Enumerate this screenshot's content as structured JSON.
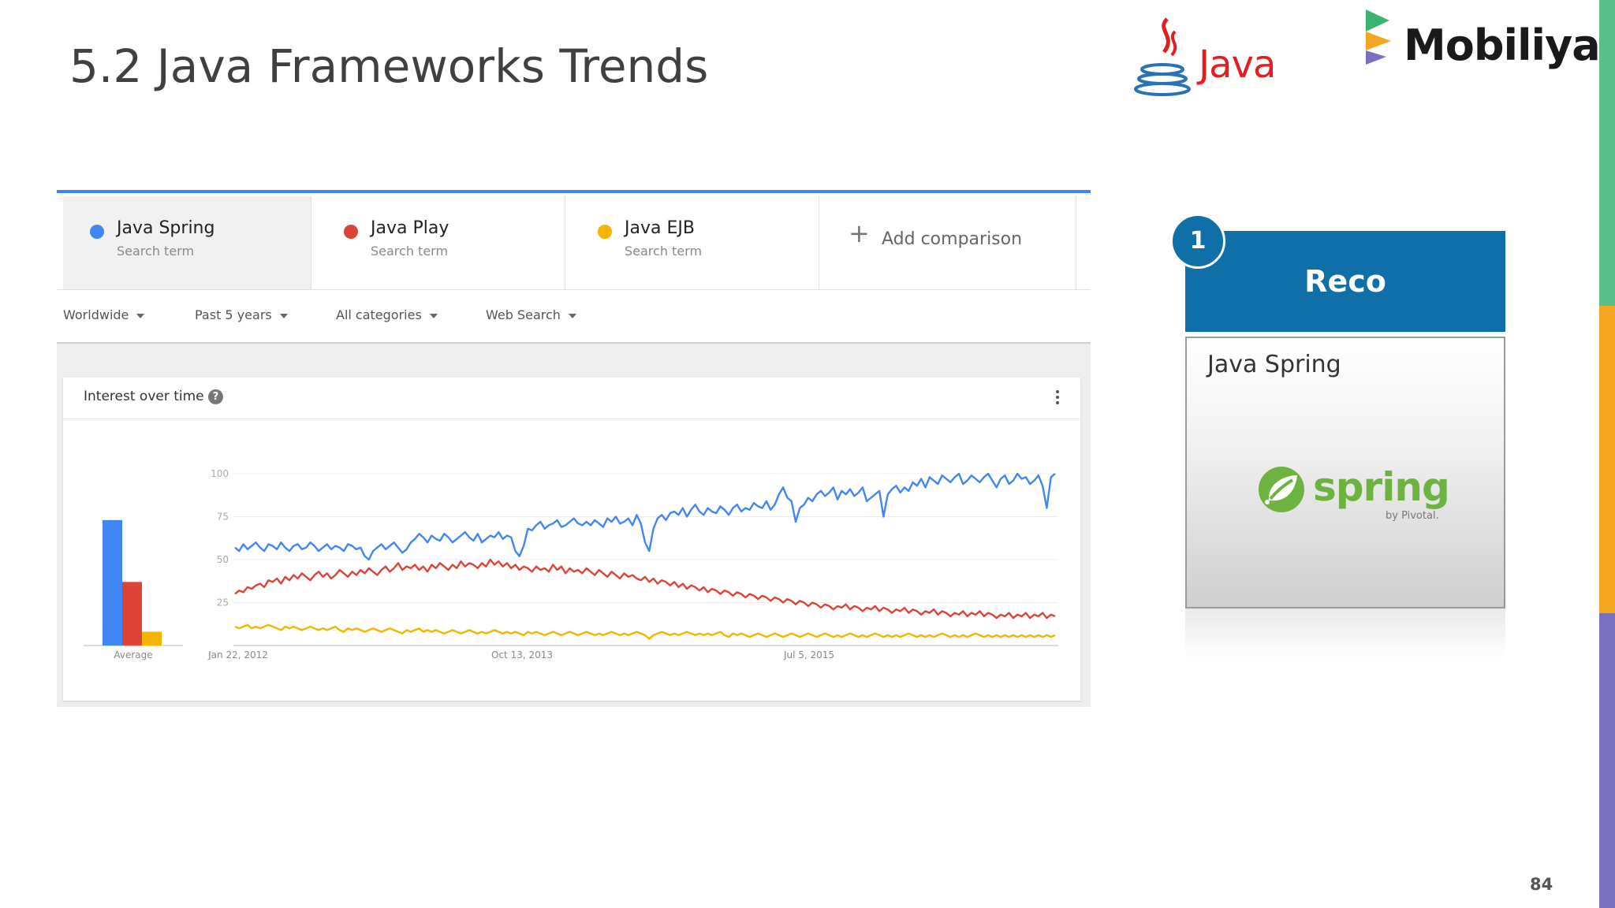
{
  "slide": {
    "title": "5.2 Java Frameworks Trends",
    "page_number": "84"
  },
  "logos": {
    "java": "Java",
    "mobiliya": "Mobiliya"
  },
  "side_strip_colors": [
    "#5bbf8a",
    "#f5a623",
    "#7b6fbf"
  ],
  "trends": {
    "terms": [
      {
        "name": "Java Spring",
        "sub": "Search term",
        "color": "#4285f4"
      },
      {
        "name": "Java Play",
        "sub": "Search term",
        "color": "#db4437"
      },
      {
        "name": "Java EJB",
        "sub": "Search term",
        "color": "#f4b400"
      }
    ],
    "add_comparison": "Add comparison",
    "filters": [
      "Worldwide",
      "Past 5 years",
      "All categories",
      "Web Search"
    ],
    "card_title": "Interest over time",
    "help_icon": "help-icon",
    "menu_icon": "more-vert-icon"
  },
  "chart_data": {
    "type": "line",
    "title": "",
    "x_tick_labels": [
      "Jan 22, 2012",
      "Oct 13, 2013",
      "Jul 5, 2015"
    ],
    "ylim": [
      0,
      100
    ],
    "y_ticks": [
      25,
      50,
      75,
      100
    ],
    "grid": true,
    "average_label": "Average",
    "average_bars": [
      {
        "name": "Java Spring",
        "value": 73
      },
      {
        "name": "Java Play",
        "value": 37
      },
      {
        "name": "Java EJB",
        "value": 8
      }
    ],
    "x_range": [
      "2012-01-22",
      "2017-01-15"
    ],
    "series": [
      {
        "name": "Java Spring",
        "values": [
          57,
          55,
          59,
          56,
          58,
          60,
          57,
          55,
          59,
          58,
          56,
          60,
          57,
          55,
          58,
          59,
          56,
          57,
          60,
          58,
          55,
          57,
          59,
          56,
          58,
          57,
          55,
          59,
          58,
          56,
          57,
          52,
          50,
          55,
          57,
          59,
          56,
          58,
          60,
          57,
          54,
          56,
          60,
          62,
          65,
          63,
          60,
          64,
          62,
          61,
          65,
          63,
          60,
          62,
          64,
          66,
          63,
          61,
          65,
          60,
          62,
          64,
          63,
          66,
          62,
          64,
          63,
          55,
          52,
          58,
          68,
          67,
          70,
          72,
          68,
          70,
          71,
          73,
          69,
          70,
          72,
          74,
          71,
          70,
          72,
          70,
          73,
          71,
          69,
          74,
          72,
          75,
          71,
          72,
          74,
          70,
          76,
          71,
          60,
          55,
          68,
          74,
          76,
          73,
          77,
          78,
          76,
          80,
          75,
          79,
          82,
          78,
          76,
          80,
          78,
          77,
          81,
          79,
          76,
          80,
          82,
          78,
          80,
          79,
          83,
          81,
          80,
          84,
          79,
          82,
          88,
          92,
          86,
          84,
          72,
          80,
          82,
          86,
          84,
          88,
          90,
          87,
          89,
          92,
          85,
          90,
          88,
          91,
          87,
          89,
          92,
          84,
          86,
          88,
          90,
          75,
          88,
          91,
          93,
          89,
          92,
          90,
          95,
          93,
          97,
          92,
          98,
          96,
          94,
          99,
          97,
          95,
          98,
          100,
          94,
          96,
          99,
          97,
          95,
          98,
          100,
          96,
          92,
          97,
          99,
          94,
          96,
          100,
          97,
          98,
          94,
          96,
          99,
          93,
          80,
          98,
          100
        ]
      },
      {
        "name": "Java Play",
        "values": [
          30,
          32,
          31,
          34,
          33,
          35,
          36,
          34,
          38,
          37,
          39,
          36,
          40,
          38,
          41,
          39,
          42,
          40,
          38,
          41,
          43,
          40,
          42,
          39,
          41,
          44,
          42,
          40,
          43,
          41,
          44,
          42,
          45,
          43,
          41,
          44,
          46,
          43,
          45,
          48,
          44,
          46,
          45,
          47,
          44,
          46,
          43,
          47,
          45,
          48,
          46,
          44,
          47,
          45,
          49,
          46,
          48,
          47,
          45,
          48,
          46,
          50,
          47,
          49,
          46,
          48,
          45,
          47,
          44,
          46,
          45,
          43,
          46,
          44,
          45,
          43,
          47,
          44,
          46,
          42,
          45,
          43,
          44,
          42,
          45,
          43,
          41,
          44,
          42,
          40,
          43,
          41,
          39,
          42,
          40,
          41,
          39,
          38,
          40,
          37,
          39,
          36,
          38,
          37,
          35,
          37,
          34,
          36,
          33,
          35,
          34,
          32,
          34,
          31,
          33,
          32,
          30,
          32,
          31,
          29,
          31,
          30,
          28,
          30,
          29,
          27,
          29,
          28,
          26,
          28,
          27,
          25,
          27,
          26,
          24,
          26,
          25,
          23,
          25,
          24,
          22,
          24,
          23,
          21,
          23,
          22,
          24,
          21,
          23,
          22,
          20,
          22,
          21,
          23,
          20,
          22,
          21,
          19,
          21,
          20,
          22,
          19,
          21,
          20,
          18,
          20,
          19,
          21,
          18,
          20,
          19,
          17,
          19,
          18,
          20,
          17,
          19,
          18,
          20,
          17,
          19,
          18,
          16,
          18,
          17,
          19,
          16,
          18,
          17,
          19,
          16,
          18,
          17,
          19,
          16,
          18,
          17
        ]
      },
      {
        "name": "Java EJB",
        "values": [
          11,
          10,
          11,
          12,
          10,
          11,
          10,
          11,
          12,
          11,
          10,
          9,
          11,
          10,
          11,
          10,
          9,
          10,
          11,
          10,
          9,
          10,
          9,
          10,
          11,
          9,
          8,
          10,
          9,
          10,
          9,
          8,
          9,
          10,
          9,
          8,
          9,
          10,
          9,
          8,
          7,
          9,
          8,
          9,
          10,
          8,
          9,
          8,
          9,
          8,
          7,
          8,
          9,
          8,
          7,
          8,
          9,
          8,
          7,
          8,
          7,
          8,
          9,
          8,
          7,
          8,
          7,
          8,
          7,
          6,
          8,
          7,
          8,
          7,
          6,
          7,
          8,
          7,
          6,
          7,
          8,
          7,
          6,
          7,
          8,
          7,
          6,
          7,
          6,
          7,
          8,
          7,
          6,
          7,
          6,
          7,
          8,
          7,
          6,
          4,
          6,
          7,
          8,
          7,
          6,
          7,
          6,
          7,
          8,
          7,
          6,
          7,
          6,
          7,
          6,
          7,
          8,
          6,
          5,
          7,
          6,
          7,
          6,
          5,
          6,
          7,
          6,
          5,
          6,
          7,
          6,
          5,
          6,
          7,
          6,
          5,
          6,
          7,
          6,
          5,
          6,
          7,
          6,
          5,
          6,
          5,
          6,
          7,
          6,
          5,
          6,
          5,
          6,
          7,
          6,
          5,
          6,
          5,
          6,
          5,
          6,
          7,
          6,
          5,
          6,
          5,
          6,
          5,
          6,
          7,
          6,
          5,
          6,
          5,
          6,
          5,
          6,
          7,
          6,
          5,
          6,
          5,
          6,
          5,
          6,
          5,
          6,
          5,
          6,
          5,
          6,
          5,
          6,
          5,
          6,
          5,
          6
        ]
      }
    ]
  },
  "recommendation": {
    "badge": "1",
    "heading": "Reco",
    "choice": "Java Spring",
    "logo_word": "spring",
    "logo_sub": "by Pivotal."
  }
}
